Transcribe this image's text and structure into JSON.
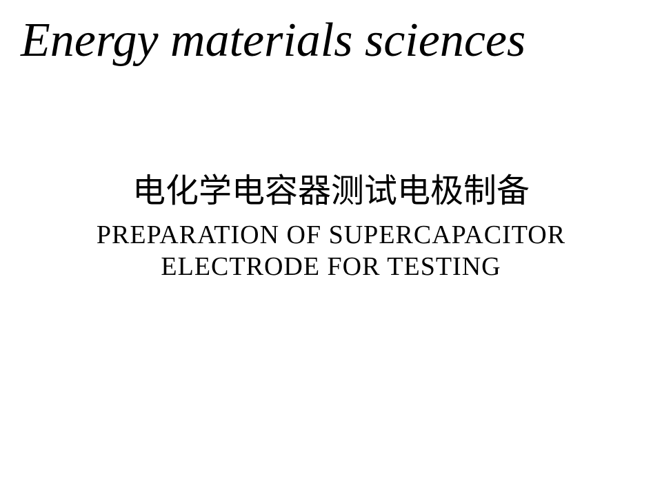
{
  "slide": {
    "heading": "Energy materials sciences",
    "heading_fontsize": 70,
    "heading_color": "#000000",
    "chinese_title": "电化学电容器测试电极制备",
    "chinese_title_fontsize": 48,
    "chinese_title_color": "#000000",
    "english_title": "Preparation of supercapacitor electrode for testing",
    "english_title_fontsize": 38,
    "english_title_color": "#000000",
    "background_color": "#ffffff"
  }
}
